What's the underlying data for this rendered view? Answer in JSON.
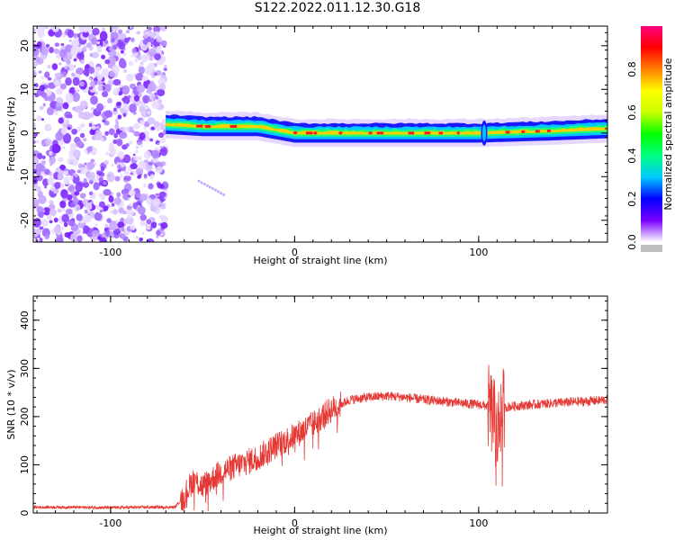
{
  "title": "S122.2022.011.12.30.G18",
  "chart_data": [
    {
      "type": "heatmap",
      "xlabel": "Height of straight line (km)",
      "ylabel": "Frequency (Hz)",
      "xlim": [
        -142,
        170
      ],
      "ylim": [
        -25,
        24.5
      ],
      "xticks": [
        -100,
        0,
        100
      ],
      "yticks": [
        -20,
        -10,
        0,
        10,
        20
      ],
      "colorbar": {
        "label": "Normalized spectral amplitude",
        "range": [
          0,
          1
        ],
        "ticks": [
          0.0,
          0.2,
          0.4,
          0.6,
          0.8
        ],
        "colormap": [
          "#ffffff",
          "#7a00ff",
          "#0000ff",
          "#00c8ff",
          "#00ff80",
          "#00ff00",
          "#c8ff00",
          "#ffff00",
          "#ff8000",
          "#ff0000",
          "#ff0080"
        ]
      },
      "noise_region_x": [
        -142,
        -70
      ],
      "band": {
        "x_start": -70,
        "x_end": 170,
        "center_freq": [
          [
            -70,
            2
          ],
          [
            -50,
            1.5
          ],
          [
            -20,
            1.5
          ],
          [
            0,
            0
          ],
          [
            20,
            0
          ],
          [
            60,
            0
          ],
          [
            100,
            0
          ],
          [
            140,
            0.5
          ],
          [
            170,
            1
          ]
        ],
        "spike_x": 103
      }
    },
    {
      "type": "line",
      "xlabel": "Height of straight line (km)",
      "ylabel": "SNR (10 * v/v)",
      "xlim": [
        -142,
        170
      ],
      "ylim": [
        0,
        450
      ],
      "xticks": [
        -100,
        0,
        100
      ],
      "yticks": [
        0,
        100,
        200,
        300,
        400
      ],
      "color": "#e53935",
      "series": [
        {
          "x": [
            -142,
            -120,
            -100,
            -80,
            -65,
            -60,
            -55,
            -50,
            -40,
            -30,
            -20,
            -10,
            0,
            10,
            20,
            30,
            40,
            50,
            60,
            70,
            80,
            90,
            100,
            105,
            108,
            110,
            112,
            115,
            120,
            130,
            140,
            150,
            160,
            170
          ],
          "values": [
            12,
            12,
            11,
            12,
            12,
            35,
            70,
            55,
            85,
            100,
            115,
            140,
            160,
            185,
            215,
            235,
            240,
            243,
            240,
            235,
            232,
            228,
            225,
            222,
            200,
            160,
            210,
            220,
            222,
            225,
            228,
            230,
            232,
            235
          ]
        }
      ]
    }
  ]
}
